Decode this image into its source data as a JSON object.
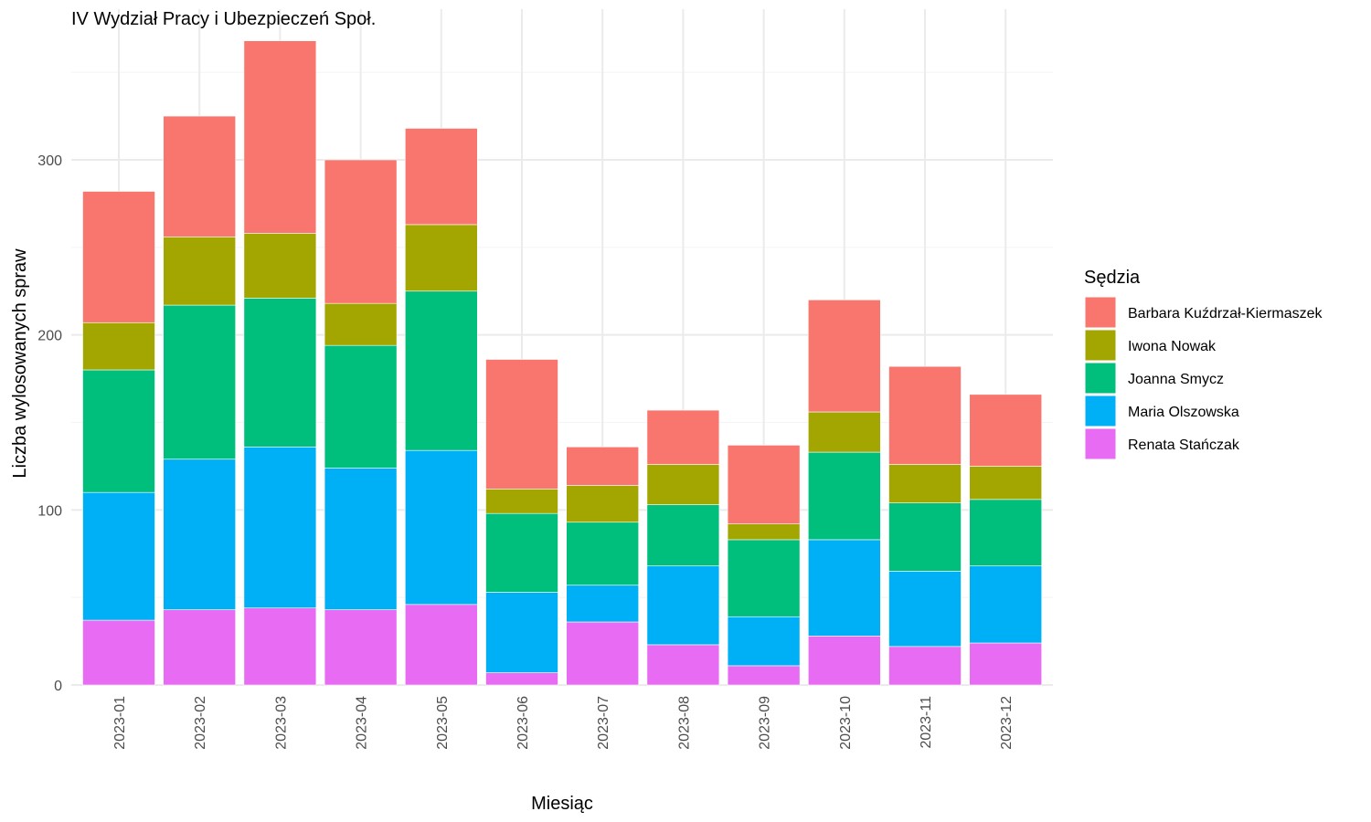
{
  "chart_data": {
    "type": "bar",
    "stacked": true,
    "title": "IV Wydział Pracy i Ubezpieczeń Społ.",
    "xlabel": "Miesiąc",
    "ylabel": "Liczba wylosowanych spraw",
    "ylim": [
      0,
      370
    ],
    "yticks": [
      0,
      100,
      200,
      300
    ],
    "grid": true,
    "legend_position": "right",
    "legend_title": "Sędzia",
    "categories": [
      "2023-01",
      "2023-02",
      "2023-03",
      "2023-04",
      "2023-05",
      "2023-06",
      "2023-07",
      "2023-08",
      "2023-09",
      "2023-10",
      "2023-11",
      "2023-12"
    ],
    "series": [
      {
        "name": "Barbara Kuźdrzał-Kiermaszek",
        "color": "#F8766D",
        "values": [
          75,
          69,
          110,
          82,
          55,
          74,
          22,
          31,
          45,
          64,
          56,
          41
        ]
      },
      {
        "name": "Iwona Nowak",
        "color": "#A3A500",
        "values": [
          27,
          39,
          37,
          24,
          38,
          14,
          21,
          23,
          9,
          23,
          22,
          19
        ]
      },
      {
        "name": "Joanna Smycz",
        "color": "#00BF7D",
        "values": [
          70,
          88,
          85,
          70,
          91,
          45,
          36,
          35,
          44,
          50,
          39,
          38
        ]
      },
      {
        "name": "Maria Olszowska",
        "color": "#00B0F6",
        "values": [
          73,
          86,
          92,
          81,
          88,
          46,
          21,
          45,
          28,
          55,
          43,
          44
        ]
      },
      {
        "name": "Renata Stańczak",
        "color": "#E76BF3",
        "values": [
          37,
          43,
          44,
          43,
          46,
          7,
          36,
          23,
          11,
          28,
          22,
          24
        ]
      }
    ]
  }
}
